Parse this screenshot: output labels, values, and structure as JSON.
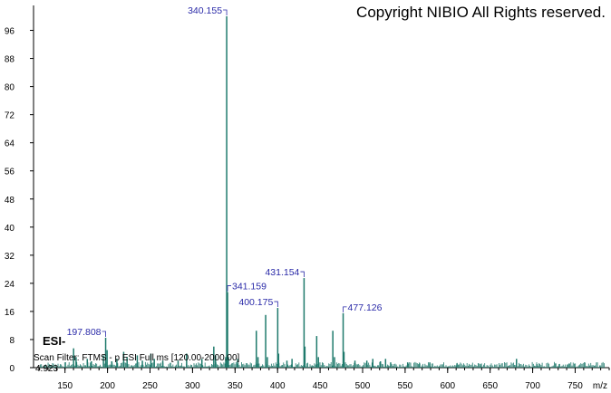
{
  "watermark": "Copyright NIBIO All Rights reserved.",
  "ion_mode": "ESI-",
  "scan_filter": "Scan Filter: FTMS - p ESI Full ms [120.00-2000.00]",
  "base_value_label": "4.923",
  "chart_data": {
    "type": "bar",
    "title": "",
    "xlabel": "m/z",
    "ylabel": "",
    "xlim": [
      113,
      790
    ],
    "ylim": [
      0,
      100
    ],
    "x_ticks": [
      150,
      200,
      250,
      300,
      350,
      400,
      450,
      500,
      550,
      600,
      650,
      700,
      750
    ],
    "y_ticks": [
      0,
      8,
      16,
      24,
      32,
      40,
      48,
      56,
      64,
      72,
      80,
      88,
      96
    ],
    "grid": false,
    "colors": {
      "peak": "#1f7a6c",
      "label": "#2a2aa8",
      "axis": "#000000"
    },
    "labeled_peaks": [
      {
        "mz": 197.808,
        "intensity": 8.5,
        "label": "197.808"
      },
      {
        "mz": 340.155,
        "intensity": 100,
        "label": "340.155"
      },
      {
        "mz": 341.159,
        "intensity": 21.5,
        "label": "341.159"
      },
      {
        "mz": 400.175,
        "intensity": 17,
        "label": "400.175"
      },
      {
        "mz": 431.154,
        "intensity": 25.5,
        "label": "431.154"
      },
      {
        "mz": 477.126,
        "intensity": 15.5,
        "label": "477.126"
      }
    ],
    "peaks": [
      {
        "mz": 160.1,
        "intensity": 5.5
      },
      {
        "mz": 163.0,
        "intensity": 3.0
      },
      {
        "mz": 176.2,
        "intensity": 2.5
      },
      {
        "mz": 181.0,
        "intensity": 1.8
      },
      {
        "mz": 195.2,
        "intensity": 3.5
      },
      {
        "mz": 199.5,
        "intensity": 5.0
      },
      {
        "mz": 205.0,
        "intensity": 1.8
      },
      {
        "mz": 211.0,
        "intensity": 2.5
      },
      {
        "mz": 219.0,
        "intensity": 4.5
      },
      {
        "mz": 223.0,
        "intensity": 3.0
      },
      {
        "mz": 235.0,
        "intensity": 3.5
      },
      {
        "mz": 241.0,
        "intensity": 2.0
      },
      {
        "mz": 251.0,
        "intensity": 4.0
      },
      {
        "mz": 255.0,
        "intensity": 2.5
      },
      {
        "mz": 265.0,
        "intensity": 2.0
      },
      {
        "mz": 283.0,
        "intensity": 2.0
      },
      {
        "mz": 293.0,
        "intensity": 4.0
      },
      {
        "mz": 311.0,
        "intensity": 2.5
      },
      {
        "mz": 325.0,
        "intensity": 6.0
      },
      {
        "mz": 327.0,
        "intensity": 3.5
      },
      {
        "mz": 339.0,
        "intensity": 3.0
      },
      {
        "mz": 342.16,
        "intensity": 3.0
      },
      {
        "mz": 353.0,
        "intensity": 2.5
      },
      {
        "mz": 375.0,
        "intensity": 10.5
      },
      {
        "mz": 377.0,
        "intensity": 3.0
      },
      {
        "mz": 386.0,
        "intensity": 15.0
      },
      {
        "mz": 388.0,
        "intensity": 3.0
      },
      {
        "mz": 401.18,
        "intensity": 4.0
      },
      {
        "mz": 411.0,
        "intensity": 2.0
      },
      {
        "mz": 417.0,
        "intensity": 2.5
      },
      {
        "mz": 432.16,
        "intensity": 6.0
      },
      {
        "mz": 446.0,
        "intensity": 9.0
      },
      {
        "mz": 448.0,
        "intensity": 3.0
      },
      {
        "mz": 465.0,
        "intensity": 10.5
      },
      {
        "mz": 467.0,
        "intensity": 3.0
      },
      {
        "mz": 478.13,
        "intensity": 4.5
      },
      {
        "mz": 491.0,
        "intensity": 2.0
      },
      {
        "mz": 505.0,
        "intensity": 2.0
      },
      {
        "mz": 512.0,
        "intensity": 2.5
      },
      {
        "mz": 521.0,
        "intensity": 1.8
      },
      {
        "mz": 527.0,
        "intensity": 2.5
      },
      {
        "mz": 533.0,
        "intensity": 1.5
      },
      {
        "mz": 553.0,
        "intensity": 1.5
      },
      {
        "mz": 567.0,
        "intensity": 1.2
      },
      {
        "mz": 579.0,
        "intensity": 1.5
      },
      {
        "mz": 611.0,
        "intensity": 1.2
      },
      {
        "mz": 639.0,
        "intensity": 1.0
      },
      {
        "mz": 681.0,
        "intensity": 2.5
      },
      {
        "mz": 705.0,
        "intensity": 1.0
      },
      {
        "mz": 727.0,
        "intensity": 1.2
      },
      {
        "mz": 741.0,
        "intensity": 0.8
      }
    ]
  }
}
